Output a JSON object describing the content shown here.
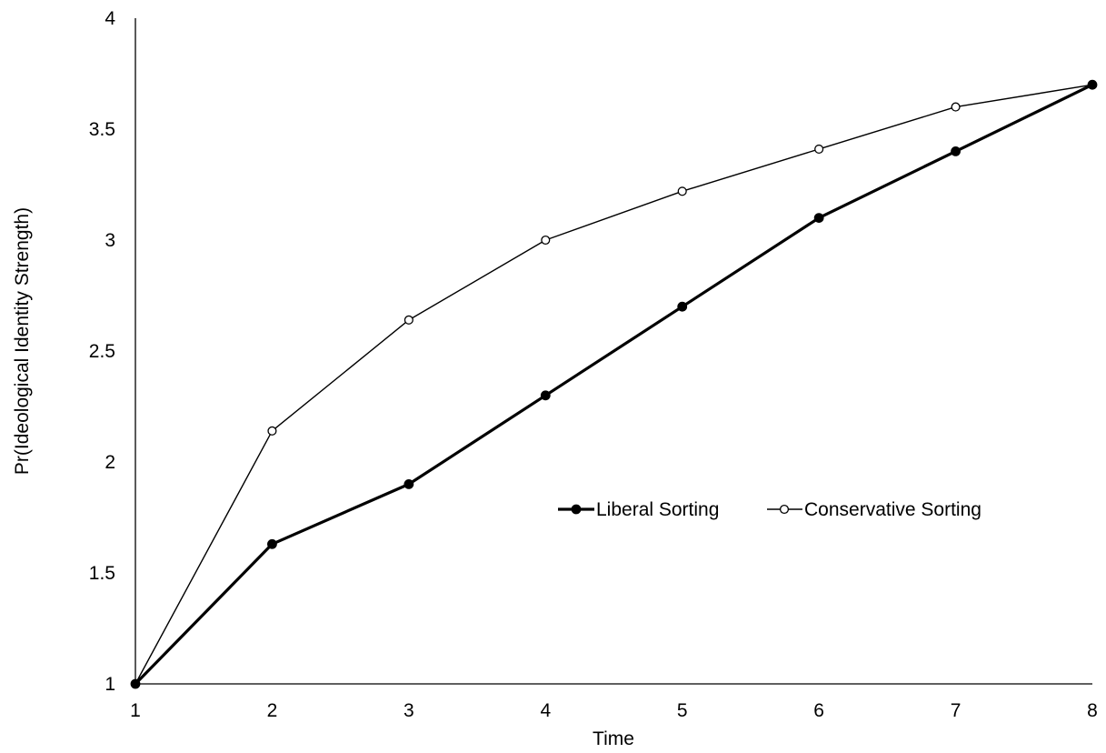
{
  "chart_data": {
    "type": "line",
    "title": "",
    "xlabel": "Time",
    "ylabel": "Pr(Ideological Identity Strength)",
    "x": [
      1,
      2,
      3,
      4,
      5,
      6,
      7,
      8
    ],
    "xlim": [
      1,
      8
    ],
    "ylim": [
      1,
      4
    ],
    "x_ticks": [
      "1",
      "2",
      "3",
      "4",
      "5",
      "6",
      "7",
      "8"
    ],
    "y_ticks": [
      "1",
      "1.5",
      "2",
      "2.5",
      "3",
      "3.5",
      "4"
    ],
    "grid": false,
    "legend_position": "center-right",
    "series": [
      {
        "name": "Liberal Sorting",
        "values": [
          1.0,
          1.63,
          1.9,
          2.3,
          2.7,
          3.1,
          3.4,
          3.7
        ],
        "color": "#000000",
        "marker": "filled-circle"
      },
      {
        "name": "Conservative Sorting",
        "values": [
          1.0,
          2.14,
          2.64,
          3.0,
          3.22,
          3.41,
          3.6,
          3.7
        ],
        "color": "#000000",
        "marker": "open-circle"
      }
    ]
  }
}
